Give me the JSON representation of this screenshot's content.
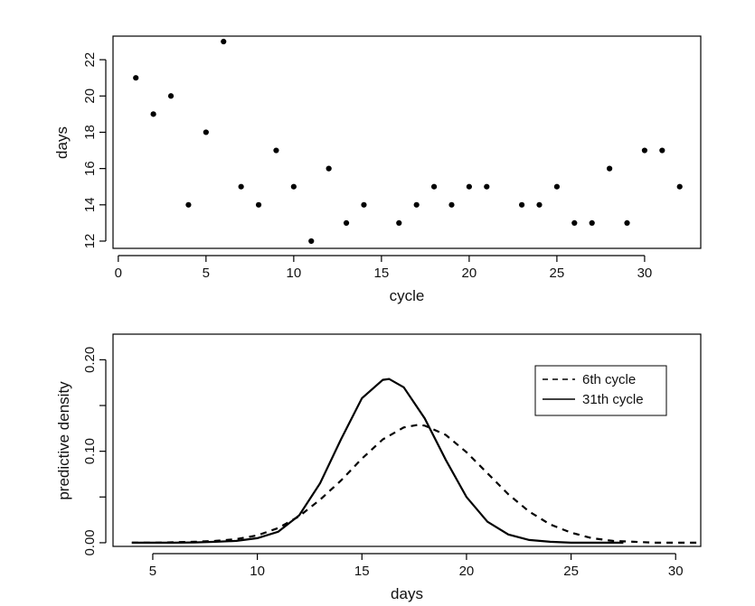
{
  "chart_data": [
    {
      "type": "scatter",
      "title": "",
      "xlabel": "cycle",
      "ylabel": "days",
      "xlim": [
        -0.3,
        33.2
      ],
      "ylim": [
        11.6,
        23.3
      ],
      "xticks": [
        0,
        5,
        10,
        15,
        20,
        25,
        30
      ],
      "yticks": [
        12,
        14,
        16,
        18,
        20,
        22
      ],
      "grid": false,
      "x": [
        1,
        2,
        3,
        4,
        5,
        6,
        7,
        8,
        9,
        10,
        11,
        12,
        13,
        14,
        16,
        17,
        18,
        19,
        20,
        21,
        23,
        24,
        25,
        26,
        27,
        28,
        29,
        30,
        31,
        32
      ],
      "y": [
        21,
        19,
        20,
        14,
        18,
        23,
        15,
        14,
        17,
        15,
        12,
        16,
        13,
        14,
        13,
        14,
        15,
        14,
        15,
        15,
        14,
        14,
        15,
        13,
        13,
        16,
        13,
        17,
        17,
        15
      ]
    },
    {
      "type": "line",
      "title": "",
      "xlabel": "days",
      "ylabel": "predictive density",
      "xlim": [
        3.1,
        31.2
      ],
      "ylim": [
        -0.004,
        0.228
      ],
      "xticks": [
        5,
        10,
        15,
        20,
        25,
        30
      ],
      "yticks": [
        0.0,
        0.1,
        0.2
      ],
      "yticklabels": [
        "0.00",
        "0.10",
        "0.20"
      ],
      "grid": false,
      "legend_position": "top-right",
      "series": [
        {
          "name": "6th cycle",
          "style": "dashed",
          "x": [
            4,
            5,
            6,
            7,
            8,
            9,
            10,
            11,
            12,
            13,
            14,
            15,
            16,
            17,
            17.7,
            18,
            19,
            20,
            21,
            22,
            23,
            24,
            25,
            26,
            27,
            28,
            29,
            30,
            31
          ],
          "y": [
            0.0,
            0.0,
            0.0005,
            0.001,
            0.002,
            0.004,
            0.008,
            0.016,
            0.029,
            0.047,
            0.068,
            0.092,
            0.113,
            0.126,
            0.129,
            0.128,
            0.118,
            0.099,
            0.076,
            0.053,
            0.034,
            0.02,
            0.011,
            0.005,
            0.002,
            0.001,
            0.0,
            0.0,
            0.0
          ]
        },
        {
          "name": "31th cycle",
          "style": "solid",
          "x": [
            4,
            5,
            6,
            7,
            8,
            9,
            10,
            11,
            12,
            13,
            14,
            15,
            16,
            16.3,
            17,
            18,
            19,
            20,
            21,
            22,
            23,
            24,
            25,
            26,
            27,
            27.5
          ],
          "y": [
            0.0,
            0.0,
            0.0,
            0.0003,
            0.001,
            0.002,
            0.005,
            0.012,
            0.03,
            0.065,
            0.113,
            0.158,
            0.178,
            0.179,
            0.17,
            0.136,
            0.091,
            0.05,
            0.023,
            0.009,
            0.003,
            0.001,
            0.0,
            0.0,
            0.0,
            0.0
          ]
        }
      ]
    }
  ]
}
